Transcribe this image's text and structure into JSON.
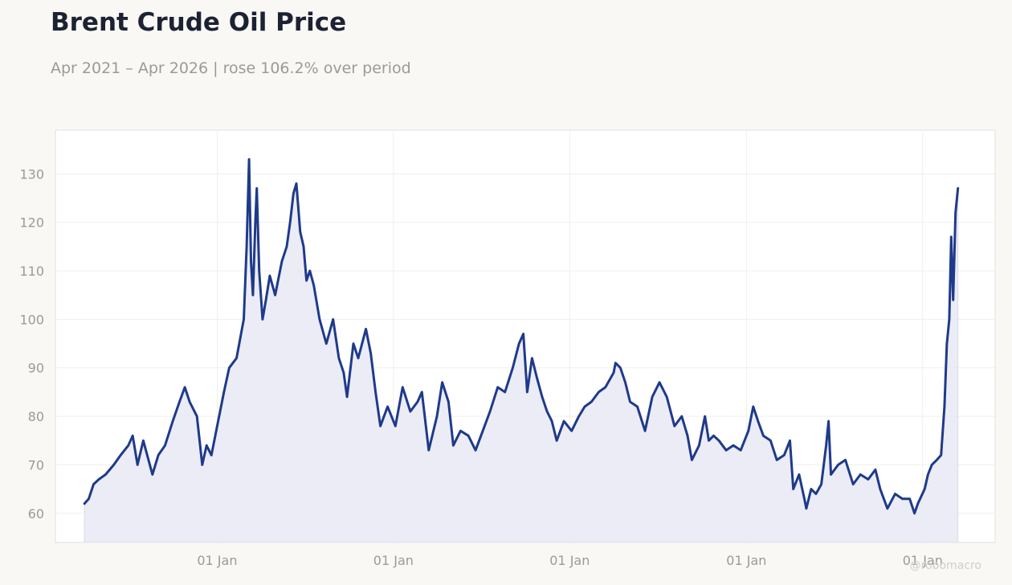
{
  "title": "Brent Crude Oil Price",
  "subtitle": "Apr 2021 – Apr 2026 | rose 106.2% over period",
  "watermark": "@robomacro",
  "colors": {
    "line": "#1f3a8a",
    "fill": "#e9eaf4",
    "background": "#f9f8f5",
    "plot_bg": "#ffffff"
  },
  "chart_data": {
    "type": "area",
    "title": "Brent Crude Oil Price",
    "subtitle": "Apr 2021 – Apr 2026 | rose 106.2% over period",
    "xlabel": "",
    "ylabel": "",
    "ylim": [
      54,
      139
    ],
    "yticks": [
      60,
      70,
      80,
      90,
      100,
      110,
      120,
      130
    ],
    "xlim": [
      "2021-01-31",
      "2026-05-31"
    ],
    "xticks": [
      {
        "date": "2022-01-01",
        "label": "01 Jan"
      },
      {
        "date": "2023-01-01",
        "label": "01 Jan"
      },
      {
        "date": "2024-01-01",
        "label": "01 Jan"
      },
      {
        "date": "2025-01-01",
        "label": "01 Jan"
      },
      {
        "date": "2026-01-01",
        "label": "01 Jan"
      }
    ],
    "grid": true,
    "series": [
      {
        "points": [
          [
            "2021-04-01",
            62
          ],
          [
            "2021-04-10",
            63
          ],
          [
            "2021-04-20",
            66
          ],
          [
            "2021-05-01",
            67
          ],
          [
            "2021-05-15",
            68
          ],
          [
            "2021-06-01",
            70
          ],
          [
            "2021-06-15",
            72
          ],
          [
            "2021-07-01",
            74
          ],
          [
            "2021-07-10",
            76
          ],
          [
            "2021-07-20",
            70
          ],
          [
            "2021-08-01",
            75
          ],
          [
            "2021-08-20",
            68
          ],
          [
            "2021-09-01",
            72
          ],
          [
            "2021-09-15",
            74
          ],
          [
            "2021-10-01",
            79
          ],
          [
            "2021-10-15",
            83
          ],
          [
            "2021-10-26",
            86
          ],
          [
            "2021-11-05",
            83
          ],
          [
            "2021-11-20",
            80
          ],
          [
            "2021-12-01",
            70
          ],
          [
            "2021-12-10",
            74
          ],
          [
            "2021-12-20",
            72
          ],
          [
            "2022-01-01",
            78
          ],
          [
            "2022-01-15",
            85
          ],
          [
            "2022-01-26",
            90
          ],
          [
            "2022-02-10",
            92
          ],
          [
            "2022-02-25",
            100
          ],
          [
            "2022-03-03",
            115
          ],
          [
            "2022-03-08",
            133
          ],
          [
            "2022-03-12",
            112
          ],
          [
            "2022-03-16",
            105
          ],
          [
            "2022-03-21",
            120
          ],
          [
            "2022-03-24",
            127
          ],
          [
            "2022-03-29",
            110
          ],
          [
            "2022-04-05",
            100
          ],
          [
            "2022-04-12",
            104
          ],
          [
            "2022-04-20",
            109
          ],
          [
            "2022-05-01",
            105
          ],
          [
            "2022-05-15",
            112
          ],
          [
            "2022-05-25",
            115
          ],
          [
            "2022-06-01",
            120
          ],
          [
            "2022-06-08",
            126
          ],
          [
            "2022-06-14",
            128
          ],
          [
            "2022-06-22",
            118
          ],
          [
            "2022-06-29",
            115
          ],
          [
            "2022-07-05",
            108
          ],
          [
            "2022-07-12",
            110
          ],
          [
            "2022-07-20",
            107
          ],
          [
            "2022-08-01",
            100
          ],
          [
            "2022-08-15",
            95
          ],
          [
            "2022-08-29",
            100
          ],
          [
            "2022-09-10",
            92
          ],
          [
            "2022-09-20",
            89
          ],
          [
            "2022-09-27",
            84
          ],
          [
            "2022-10-10",
            95
          ],
          [
            "2022-10-20",
            92
          ],
          [
            "2022-11-05",
            98
          ],
          [
            "2022-11-15",
            93
          ],
          [
            "2022-11-25",
            85
          ],
          [
            "2022-12-05",
            78
          ],
          [
            "2022-12-20",
            82
          ],
          [
            "2023-01-05",
            78
          ],
          [
            "2023-01-20",
            86
          ],
          [
            "2023-02-05",
            81
          ],
          [
            "2023-02-20",
            83
          ],
          [
            "2023-03-01",
            85
          ],
          [
            "2023-03-15",
            73
          ],
          [
            "2023-04-01",
            80
          ],
          [
            "2023-04-12",
            87
          ],
          [
            "2023-04-25",
            83
          ],
          [
            "2023-05-05",
            74
          ],
          [
            "2023-05-20",
            77
          ],
          [
            "2023-06-05",
            76
          ],
          [
            "2023-06-20",
            73
          ],
          [
            "2023-07-05",
            77
          ],
          [
            "2023-07-20",
            81
          ],
          [
            "2023-08-05",
            86
          ],
          [
            "2023-08-20",
            85
          ],
          [
            "2023-09-05",
            90
          ],
          [
            "2023-09-18",
            95
          ],
          [
            "2023-09-27",
            97
          ],
          [
            "2023-10-05",
            85
          ],
          [
            "2023-10-15",
            92
          ],
          [
            "2023-10-25",
            88
          ],
          [
            "2023-11-05",
            84
          ],
          [
            "2023-11-15",
            81
          ],
          [
            "2023-11-25",
            79
          ],
          [
            "2023-12-05",
            75
          ],
          [
            "2023-12-20",
            79
          ],
          [
            "2024-01-05",
            77
          ],
          [
            "2024-01-20",
            80
          ],
          [
            "2024-02-01",
            82
          ],
          [
            "2024-02-15",
            83
          ],
          [
            "2024-03-01",
            85
          ],
          [
            "2024-03-15",
            86
          ],
          [
            "2024-04-01",
            89
          ],
          [
            "2024-04-05",
            91
          ],
          [
            "2024-04-15",
            90
          ],
          [
            "2024-04-25",
            87
          ],
          [
            "2024-05-05",
            83
          ],
          [
            "2024-05-20",
            82
          ],
          [
            "2024-06-05",
            77
          ],
          [
            "2024-06-20",
            84
          ],
          [
            "2024-07-05",
            87
          ],
          [
            "2024-07-20",
            84
          ],
          [
            "2024-08-05",
            78
          ],
          [
            "2024-08-20",
            80
          ],
          [
            "2024-09-01",
            76
          ],
          [
            "2024-09-10",
            71
          ],
          [
            "2024-09-25",
            74
          ],
          [
            "2024-10-07",
            80
          ],
          [
            "2024-10-15",
            75
          ],
          [
            "2024-10-25",
            76
          ],
          [
            "2024-11-05",
            75
          ],
          [
            "2024-11-20",
            73
          ],
          [
            "2024-12-05",
            74
          ],
          [
            "2024-12-20",
            73
          ],
          [
            "2025-01-05",
            77
          ],
          [
            "2025-01-15",
            82
          ],
          [
            "2025-01-25",
            79
          ],
          [
            "2025-02-05",
            76
          ],
          [
            "2025-02-20",
            75
          ],
          [
            "2025-03-05",
            71
          ],
          [
            "2025-03-20",
            72
          ],
          [
            "2025-04-01",
            75
          ],
          [
            "2025-04-08",
            65
          ],
          [
            "2025-04-20",
            68
          ],
          [
            "2025-05-01",
            63
          ],
          [
            "2025-05-05",
            61
          ],
          [
            "2025-05-15",
            65
          ],
          [
            "2025-05-25",
            64
          ],
          [
            "2025-06-05",
            66
          ],
          [
            "2025-06-15",
            74
          ],
          [
            "2025-06-20",
            79
          ],
          [
            "2025-06-25",
            68
          ],
          [
            "2025-07-10",
            70
          ],
          [
            "2025-07-25",
            71
          ],
          [
            "2025-08-10",
            66
          ],
          [
            "2025-08-25",
            68
          ],
          [
            "2025-09-10",
            67
          ],
          [
            "2025-09-25",
            69
          ],
          [
            "2025-10-05",
            65
          ],
          [
            "2025-10-20",
            61
          ],
          [
            "2025-11-05",
            64
          ],
          [
            "2025-11-20",
            63
          ],
          [
            "2025-12-05",
            63
          ],
          [
            "2025-12-15",
            60
          ],
          [
            "2025-12-22",
            62
          ],
          [
            "2026-01-05",
            65
          ],
          [
            "2026-01-12",
            68
          ],
          [
            "2026-01-20",
            70
          ],
          [
            "2026-01-30",
            71
          ],
          [
            "2026-02-08",
            72
          ],
          [
            "2026-02-15",
            82
          ],
          [
            "2026-02-20",
            95
          ],
          [
            "2026-02-25",
            100
          ],
          [
            "2026-03-01",
            117
          ],
          [
            "2026-03-05",
            104
          ],
          [
            "2026-03-10",
            122
          ],
          [
            "2026-03-15",
            127
          ]
        ]
      }
    ]
  }
}
